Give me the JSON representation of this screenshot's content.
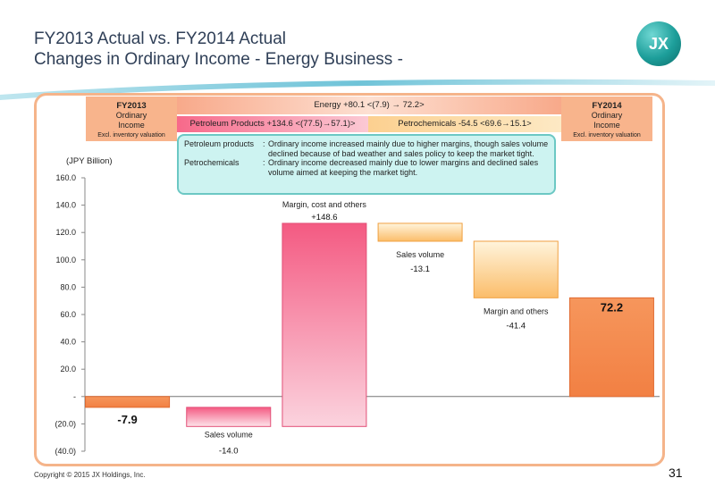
{
  "title_line1": "FY2013 Actual vs. FY2014 Actual",
  "title_line2": "Changes in Ordinary Income - Energy Business -",
  "logo_text": "JX",
  "colors": {
    "accent": "#1d9e9a",
    "negative_bar": "#f4884e",
    "petroleum": "#f7698a",
    "chemicals": "#fcd090"
  },
  "header": {
    "fy2013": {
      "year": "FY2013",
      "line1": "Ordinary",
      "line2": "Income",
      "line3": "Excl. inventory valuation"
    },
    "fy2014": {
      "year": "FY2014",
      "line1": "Ordinary",
      "line2": "Income",
      "line3": "Excl. inventory valuation"
    },
    "energy": "Energy   +80.1 <(7.9) → 72.2>",
    "petroleum": "Petroleum Products  +134.6 <(77.5)→57.1)>",
    "petrochemicals": "Petrochemicals  -54.5 <69.6→15.1>"
  },
  "note": {
    "row1_key": "Petroleum products",
    "row1_text": "Ordinary income increased mainly due to higher margins, though sales volume declined because of bad weather  and  sales policy to keep the market tight.",
    "row2_key": "Petrochemicals",
    "row2_text": "Ordinary income decreased mainly due to lower margins and declined sales volume aimed at  keeping the market tight."
  },
  "chart_data": {
    "type": "bar",
    "subtype": "waterfall",
    "ylabel": "(JPY Billion)",
    "ylim": [
      -40,
      160
    ],
    "yticks": [
      {
        "v": 160,
        "label": "160.0"
      },
      {
        "v": 140,
        "label": "140.0"
      },
      {
        "v": 120,
        "label": "120.0"
      },
      {
        "v": 100,
        "label": "100.0"
      },
      {
        "v": 80,
        "label": "80.0"
      },
      {
        "v": 60,
        "label": "60.0"
      },
      {
        "v": 40,
        "label": "40.0"
      },
      {
        "v": 20,
        "label": "20.0"
      },
      {
        "v": 0,
        "label": "-"
      },
      {
        "v": -20,
        "label": "(20.0)"
      },
      {
        "v": -40,
        "label": "(40.0)"
      }
    ],
    "bars": [
      {
        "label": "",
        "value_label": "-7.9",
        "start": 0,
        "end": -7.9,
        "kind": "total"
      },
      {
        "label": "Sales volume",
        "value_label": "-14.0",
        "start": -7.9,
        "end": -21.9,
        "kind": "petroleum"
      },
      {
        "label": "Margin, cost and others",
        "value_label": "+148.6",
        "start": -21.9,
        "end": 126.7,
        "kind": "petroleum"
      },
      {
        "label": "Sales volume",
        "value_label": "-13.1",
        "start": 126.7,
        "end": 113.6,
        "kind": "chemicals"
      },
      {
        "label": "Margin and others",
        "value_label": "-41.4",
        "start": 113.6,
        "end": 72.2,
        "kind": "chemicals"
      },
      {
        "label": "",
        "value_label": "72.2",
        "start": 0,
        "end": 72.2,
        "kind": "total"
      }
    ]
  },
  "footer": "Copyright © 2015 JX Holdings, Inc.",
  "page_number": "31"
}
